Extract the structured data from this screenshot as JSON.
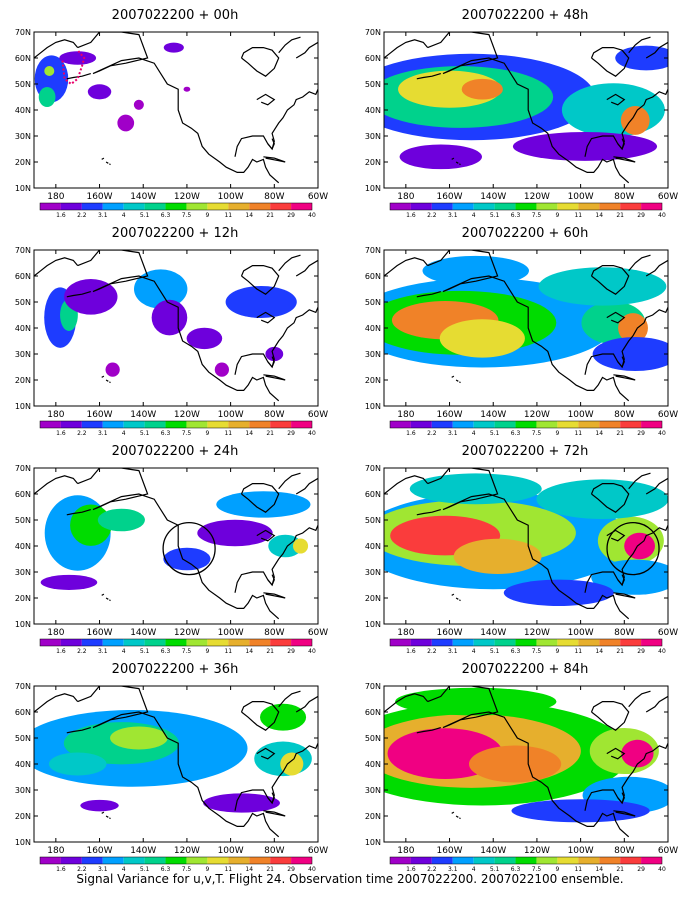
{
  "caption": "Signal Variance for u,v,T. Flight 24. Observation time 2007022200. 2007022100 ensemble.",
  "axes": {
    "lat_labels": [
      "10N",
      "20N",
      "30N",
      "40N",
      "50N",
      "60N",
      "70N"
    ],
    "lon_labels": [
      "180",
      "160W",
      "140W",
      "120W",
      "100W",
      "80W",
      "60W"
    ]
  },
  "colorbar": {
    "labels": [
      "1.6",
      "2.2",
      "3.1",
      "4",
      "5.1",
      "6.3",
      "7.5",
      "9",
      "11",
      "14",
      "21",
      "29",
      "40"
    ],
    "colors": [
      "#a000c8",
      "#6e00dc",
      "#1e3cff",
      "#00a0ff",
      "#00c8c8",
      "#00d28c",
      "#00dc00",
      "#a0e632",
      "#e6dc32",
      "#e6af2d",
      "#f08228",
      "#fa3c3c",
      "#f00082"
    ]
  },
  "panels": [
    {
      "id": "p00",
      "title": "2007022200 + 00h",
      "intensity": 0.25,
      "features": [
        "dotted-flight-track"
      ]
    },
    {
      "id": "p48",
      "title": "2007022200 + 48h",
      "intensity": 0.8,
      "features": []
    },
    {
      "id": "p12",
      "title": "2007022200 + 12h",
      "intensity": 0.4,
      "features": []
    },
    {
      "id": "p60",
      "title": "2007022200 + 60h",
      "intensity": 0.9,
      "features": []
    },
    {
      "id": "p24",
      "title": "2007022200 + 24h",
      "intensity": 0.55,
      "features": [
        "circle-target"
      ]
    },
    {
      "id": "p72",
      "title": "2007022200 + 72h",
      "intensity": 1.0,
      "features": [
        "circle-target"
      ]
    },
    {
      "id": "p36",
      "title": "2007022200 + 36h",
      "intensity": 0.6,
      "features": []
    },
    {
      "id": "p84",
      "title": "2007022200 + 84h",
      "intensity": 1.15,
      "features": []
    }
  ]
}
